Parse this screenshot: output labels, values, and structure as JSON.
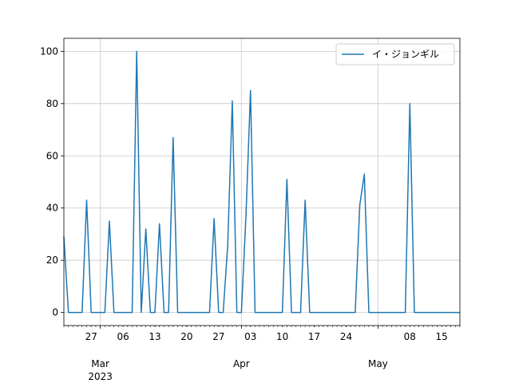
{
  "chart_data": {
    "type": "line",
    "x": [
      "2023-02-21",
      "2023-02-22",
      "2023-02-23",
      "2023-02-24",
      "2023-02-25",
      "2023-02-26",
      "2023-02-27",
      "2023-02-28",
      "2023-03-01",
      "2023-03-02",
      "2023-03-03",
      "2023-03-04",
      "2023-03-05",
      "2023-03-06",
      "2023-03-07",
      "2023-03-08",
      "2023-03-09",
      "2023-03-10",
      "2023-03-11",
      "2023-03-12",
      "2023-03-13",
      "2023-03-14",
      "2023-03-15",
      "2023-03-16",
      "2023-03-17",
      "2023-03-18",
      "2023-03-19",
      "2023-03-20",
      "2023-03-21",
      "2023-03-22",
      "2023-03-23",
      "2023-03-24",
      "2023-03-25",
      "2023-03-26",
      "2023-03-27",
      "2023-03-28",
      "2023-03-29",
      "2023-03-30",
      "2023-03-31",
      "2023-04-01",
      "2023-04-02",
      "2023-04-03",
      "2023-04-04",
      "2023-04-05",
      "2023-04-06",
      "2023-04-07",
      "2023-04-08",
      "2023-04-09",
      "2023-04-10",
      "2023-04-11",
      "2023-04-12",
      "2023-04-13",
      "2023-04-14",
      "2023-04-15",
      "2023-04-16",
      "2023-04-17",
      "2023-04-18",
      "2023-04-19",
      "2023-04-20",
      "2023-04-21",
      "2023-04-22",
      "2023-04-23",
      "2023-04-24",
      "2023-04-25",
      "2023-04-26",
      "2023-04-27",
      "2023-04-28",
      "2023-04-29",
      "2023-04-30",
      "2023-05-01",
      "2023-05-02",
      "2023-05-03",
      "2023-05-04",
      "2023-05-05",
      "2023-05-06",
      "2023-05-07",
      "2023-05-08",
      "2023-05-09",
      "2023-05-10",
      "2023-05-11",
      "2023-05-12",
      "2023-05-13",
      "2023-05-14",
      "2023-05-15",
      "2023-05-16",
      "2023-05-17",
      "2023-05-18",
      "2023-05-19"
    ],
    "series": [
      {
        "name": "イ・ジョンギル",
        "color": "#1f77b4",
        "values": [
          29,
          0,
          0,
          0,
          0,
          43,
          0,
          0,
          0,
          0,
          35,
          0,
          0,
          0,
          0,
          0,
          100,
          0,
          32,
          0,
          0,
          34,
          0,
          0,
          67,
          0,
          0,
          0,
          0,
          0,
          0,
          0,
          0,
          36,
          0,
          0,
          26,
          81,
          0,
          0,
          37,
          85,
          0,
          0,
          0,
          0,
          0,
          0,
          0,
          51,
          0,
          0,
          0,
          43,
          0,
          0,
          0,
          0,
          0,
          0,
          0,
          0,
          0,
          0,
          0,
          41,
          53,
          0,
          0,
          0,
          0,
          0,
          0,
          0,
          0,
          0,
          80,
          0,
          0,
          0,
          0,
          0,
          0,
          0,
          0,
          0,
          0,
          0
        ]
      }
    ],
    "ylim": [
      -5,
      105
    ],
    "y_ticks": [
      0,
      20,
      40,
      60,
      80,
      100
    ],
    "x_tick_labels": [
      {
        "date": "2023-02-27",
        "label": "27"
      },
      {
        "date": "2023-03-06",
        "label": "06"
      },
      {
        "date": "2023-03-13",
        "label": "13"
      },
      {
        "date": "2023-03-20",
        "label": "20"
      },
      {
        "date": "2023-03-27",
        "label": "27"
      },
      {
        "date": "2023-04-03",
        "label": "03"
      },
      {
        "date": "2023-04-10",
        "label": "10"
      },
      {
        "date": "2023-04-17",
        "label": "17"
      },
      {
        "date": "2023-04-24",
        "label": "24"
      },
      {
        "date": "2023-05-08",
        "label": "08"
      },
      {
        "date": "2023-05-15",
        "label": "15"
      }
    ],
    "x_major_labels": [
      {
        "date": "2023-03-01",
        "label": "Mar",
        "sublabel": "2023"
      },
      {
        "date": "2023-04-01",
        "label": "Apr"
      },
      {
        "date": "2023-05-01",
        "label": "May"
      }
    ],
    "grid": true,
    "legend_position": "top-right"
  }
}
